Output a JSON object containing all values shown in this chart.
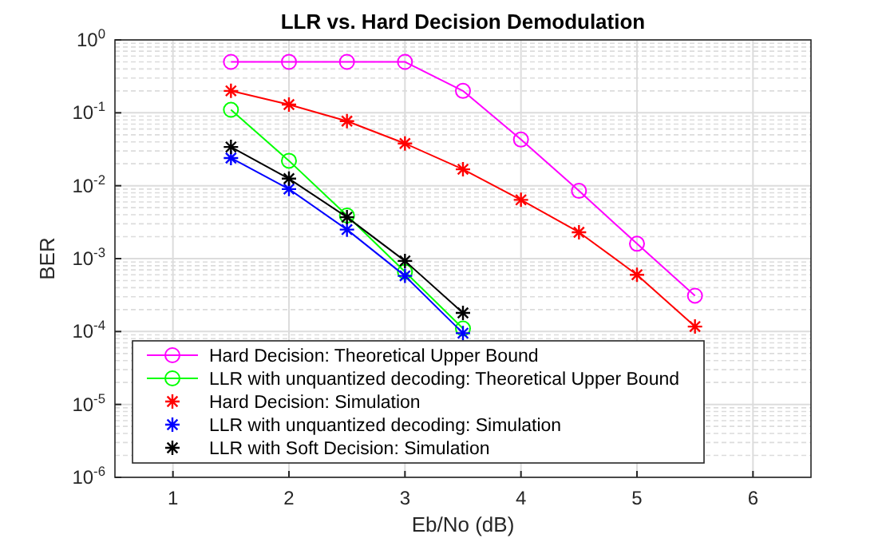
{
  "chart_data": {
    "type": "line",
    "title": "LLR vs. Hard Decision Demodulation",
    "xlabel": "Eb/No (dB)",
    "ylabel": "BER",
    "log": "y",
    "grid": true,
    "legend": "bottom left",
    "xlim": [
      0.5,
      6.5
    ],
    "xticks": [
      1,
      2,
      3,
      4,
      5,
      6
    ],
    "ylim": [
      1e-06,
      1
    ],
    "yticks": [
      {
        "value": 1e-06,
        "label": "10$^{-6}$"
      },
      {
        "value": 1e-05,
        "label": "10$^{-5}$"
      },
      {
        "value": 0.0001,
        "label": "10$^{-4}$"
      },
      {
        "value": 0.001,
        "label": "10$^{-3}$"
      },
      {
        "value": 0.01,
        "label": "10$^{-2}$"
      },
      {
        "value": 0.1,
        "label": "10$^{-1}$"
      },
      {
        "value": 1,
        "label": "10$^{0}$"
      }
    ],
    "x": [
      1.5,
      2,
      2.5,
      3,
      3.5,
      4,
      4.5,
      5,
      5.5
    ],
    "series": [
      {
        "name": "Hard Decision: Theoretical Upper Bound",
        "marker": "circle",
        "color": "#ff00ff",
        "values": [
          0.5,
          0.5,
          0.5,
          0.5,
          0.2,
          0.043,
          0.0085,
          0.0016,
          0.00031
        ]
      },
      {
        "name": "LLR with unquantized decoding: Theoretical Upper Bound",
        "marker": "circle",
        "color": "#00ff00",
        "x": [
          1.5,
          2,
          2.5,
          3,
          3.5
        ],
        "values": [
          0.11,
          0.022,
          0.0039,
          0.00066,
          0.00011
        ]
      },
      {
        "name": "Hard Decision: Simulation",
        "type": "scatter",
        "marker": "cross",
        "color": "#ff0000",
        "values": [
          0.2,
          0.13,
          0.077,
          0.038,
          0.0168,
          0.0064,
          0.0023,
          0.0006,
          0.000117
        ]
      },
      {
        "name": "LLR with unquantized decoding: Simulation",
        "type": "scatter",
        "marker": "cross",
        "color": "#0000ff",
        "x": [
          1.5,
          2,
          2.5,
          3,
          3.5
        ],
        "values": [
          0.024,
          0.009,
          0.0025,
          0.00058,
          9.5e-05
        ]
      },
      {
        "name": "LLR with Soft Decision: Simulation",
        "type": "scatter",
        "marker": "cross",
        "color": "#000000",
        "x": [
          1.5,
          2,
          2.5,
          3,
          3.5
        ],
        "values": [
          0.034,
          0.0125,
          0.0037,
          0.00093,
          0.00018
        ]
      },
      {
        "marker": "none",
        "color": "#ff0000",
        "values": [
          0.2,
          0.13,
          0.077,
          0.038,
          0.0168,
          0.0064,
          0.0023,
          0.0006,
          0.000117
        ]
      },
      {
        "marker": "none",
        "color": "#0000ff",
        "x": [
          1.5,
          2,
          2.5,
          3,
          3.5
        ],
        "values": [
          0.024,
          0.009,
          0.0025,
          0.00058,
          9.5e-05
        ]
      },
      {
        "marker": "none",
        "color": "#000000",
        "x": [
          1.5,
          2,
          2.5,
          3,
          3.5
        ],
        "values": [
          0.034,
          0.0125,
          0.0037,
          0.00093,
          0.00018
        ]
      }
    ]
  }
}
